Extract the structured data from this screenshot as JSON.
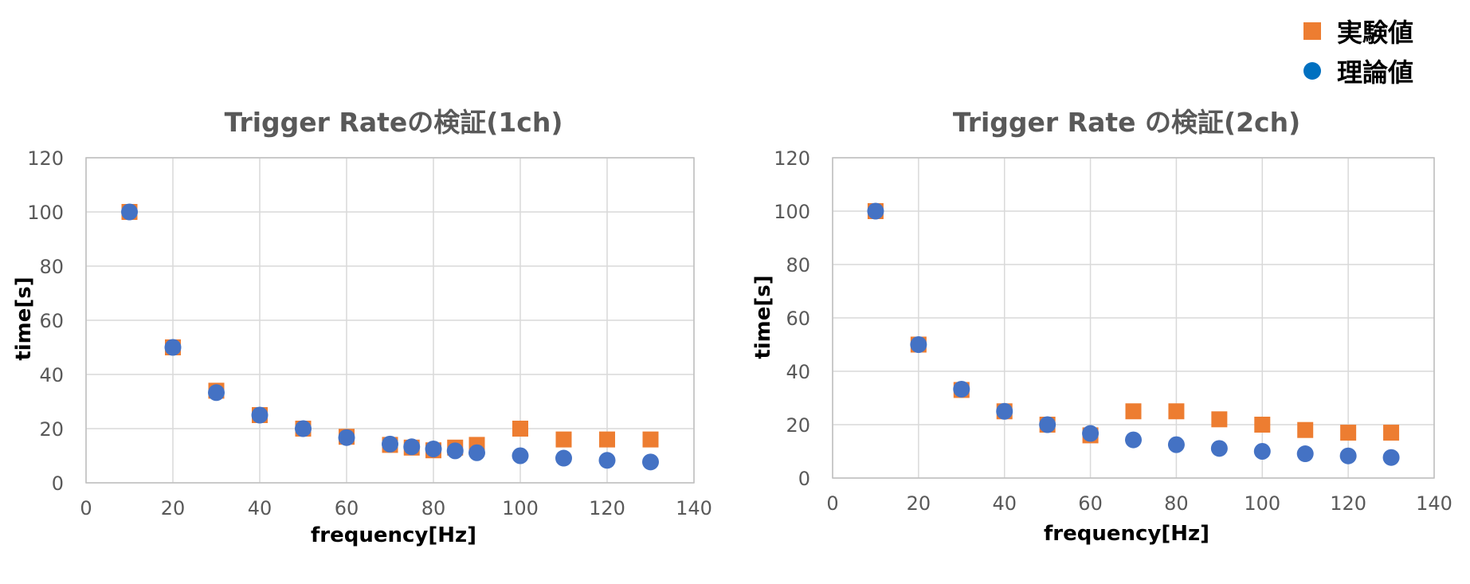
{
  "legend": {
    "items": [
      {
        "label": "実験値",
        "shape": "square",
        "color": "#ED7D31"
      },
      {
        "label": "理論値",
        "shape": "circle",
        "color": "#0070C0"
      }
    ]
  },
  "chart_data": [
    {
      "type": "scatter",
      "title": "Trigger Rateの検証(1ch)",
      "xlabel": "frequency[Hz]",
      "ylabel": "time[s]",
      "xlim": [
        0,
        140
      ],
      "ylim": [
        0,
        120
      ],
      "xticks": [
        0,
        20,
        40,
        60,
        80,
        100,
        120,
        140
      ],
      "yticks": [
        0,
        20,
        40,
        60,
        80,
        100,
        120
      ],
      "grid": true,
      "legend_position": "top-right",
      "series": [
        {
          "name": "実験値",
          "marker": "square",
          "color": "#ED7D31",
          "x": [
            10,
            20,
            30,
            40,
            50,
            60,
            70,
            75,
            80,
            85,
            90,
            100,
            110,
            120,
            130
          ],
          "y": [
            100,
            50,
            34,
            25,
            20,
            17,
            14,
            13,
            12,
            13,
            14,
            20,
            16,
            16,
            16
          ]
        },
        {
          "name": "理論値",
          "marker": "circle",
          "color": "#4472C4",
          "x": [
            10,
            20,
            30,
            40,
            50,
            60,
            70,
            75,
            80,
            85,
            90,
            100,
            110,
            120,
            130
          ],
          "y": [
            100,
            50,
            33.3,
            25,
            20,
            16.7,
            14.3,
            13.3,
            12.5,
            11.8,
            11.1,
            10,
            9.1,
            8.3,
            7.7
          ]
        }
      ]
    },
    {
      "type": "scatter",
      "title": "Trigger Rate の検証(2ch)",
      "xlabel": "frequency[Hz]",
      "ylabel": "time[s]",
      "xlim": [
        0,
        140
      ],
      "ylim": [
        0,
        120
      ],
      "xticks": [
        0,
        20,
        40,
        60,
        80,
        100,
        120,
        140
      ],
      "yticks": [
        0,
        20,
        40,
        60,
        80,
        100,
        120
      ],
      "grid": true,
      "legend_position": "top-right",
      "series": [
        {
          "name": "実験値",
          "marker": "square",
          "color": "#ED7D31",
          "x": [
            10,
            20,
            30,
            40,
            50,
            60,
            70,
            80,
            90,
            100,
            110,
            120,
            130
          ],
          "y": [
            100,
            50,
            33,
            25,
            20,
            16,
            25,
            25,
            22,
            20,
            18,
            17,
            17
          ]
        },
        {
          "name": "理論値",
          "marker": "circle",
          "color": "#4472C4",
          "x": [
            10,
            20,
            30,
            40,
            50,
            60,
            70,
            80,
            90,
            100,
            110,
            120,
            130
          ],
          "y": [
            100,
            50,
            33.3,
            25,
            20,
            16.7,
            14.3,
            12.5,
            11.1,
            10,
            9.1,
            8.3,
            7.7
          ]
        }
      ]
    }
  ]
}
